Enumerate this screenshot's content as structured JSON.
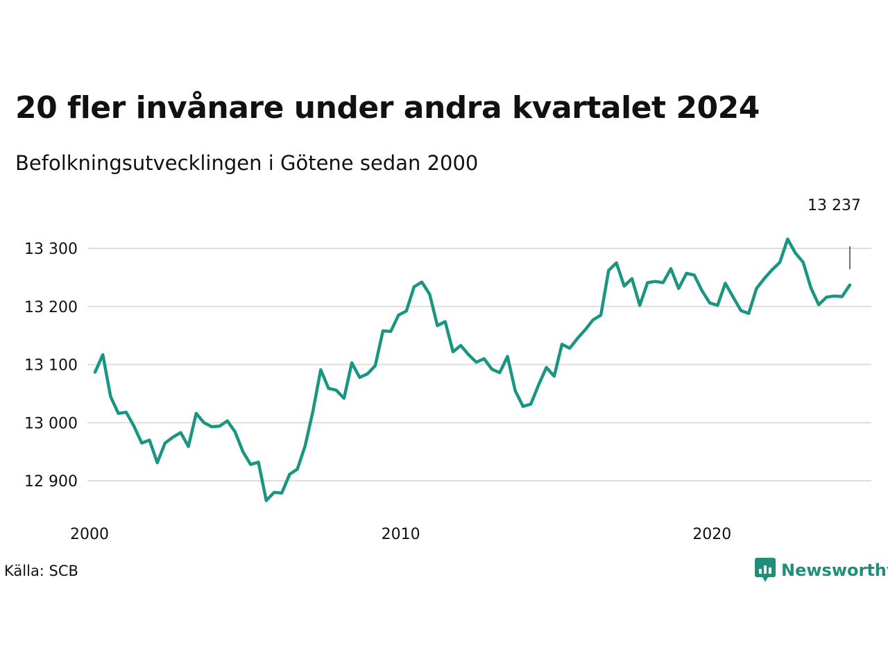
{
  "title": "20 fler invånare under andra kvartalet 2024",
  "subtitle": "Befolkningsutvecklingen i Götene sedan 2000",
  "source": "Källa: SCB",
  "brand": "Newsworthy",
  "colors": {
    "line": "#1a9582",
    "grid": "#dddddd",
    "brand": "#1f8f7c"
  },
  "chart_data": {
    "type": "line",
    "title": "20 fler invånare under andra kvartalet 2024",
    "subtitle": "Befolkningsutvecklingen i Götene sedan 2000",
    "xlabel": "",
    "ylabel": "",
    "ylim": [
      12840,
      13320
    ],
    "y_ticks": [
      12900,
      13000,
      13100,
      13200,
      13300
    ],
    "y_tick_labels": [
      "12 900",
      "13 000",
      "13 100",
      "13 200",
      "13 300"
    ],
    "x_ticks": [
      2000,
      2010,
      2020
    ],
    "x_tick_labels": [
      "2000",
      "2010",
      "2020"
    ],
    "grid": true,
    "last_value_label": "13 237",
    "x": [
      "2000-Q1",
      "2000-Q2",
      "2000-Q3",
      "2000-Q4",
      "2001-Q1",
      "2001-Q2",
      "2001-Q3",
      "2001-Q4",
      "2002-Q1",
      "2002-Q2",
      "2002-Q3",
      "2002-Q4",
      "2003-Q1",
      "2003-Q2",
      "2003-Q3",
      "2003-Q4",
      "2004-Q1",
      "2004-Q2",
      "2004-Q3",
      "2004-Q4",
      "2005-Q1",
      "2005-Q2",
      "2005-Q3",
      "2005-Q4",
      "2006-Q1",
      "2006-Q2",
      "2006-Q3",
      "2006-Q4",
      "2007-Q1",
      "2007-Q2",
      "2007-Q3",
      "2007-Q4",
      "2008-Q1",
      "2008-Q2",
      "2008-Q3",
      "2008-Q4",
      "2009-Q1",
      "2009-Q2",
      "2009-Q3",
      "2009-Q4",
      "2010-Q1",
      "2010-Q2",
      "2010-Q3",
      "2010-Q4",
      "2011-Q1",
      "2011-Q2",
      "2011-Q3",
      "2011-Q4",
      "2012-Q1",
      "2012-Q2",
      "2012-Q3",
      "2012-Q4",
      "2013-Q1",
      "2013-Q2",
      "2013-Q3",
      "2013-Q4",
      "2014-Q1",
      "2014-Q2",
      "2014-Q3",
      "2014-Q4",
      "2015-Q1",
      "2015-Q2",
      "2015-Q3",
      "2015-Q4",
      "2016-Q1",
      "2016-Q2",
      "2016-Q3",
      "2016-Q4",
      "2017-Q1",
      "2017-Q2",
      "2017-Q3",
      "2017-Q4",
      "2018-Q1",
      "2018-Q2",
      "2018-Q3",
      "2018-Q4",
      "2019-Q1",
      "2019-Q2",
      "2019-Q3",
      "2019-Q4",
      "2020-Q1",
      "2020-Q2",
      "2020-Q3",
      "2020-Q4",
      "2021-Q1",
      "2021-Q2",
      "2021-Q3",
      "2021-Q4",
      "2022-Q1",
      "2022-Q2",
      "2022-Q3",
      "2022-Q4",
      "2023-Q1",
      "2023-Q2",
      "2023-Q3",
      "2023-Q4",
      "2024-Q1",
      "2024-Q2"
    ],
    "series": [
      {
        "values": [
          13087,
          13117,
          13045,
          13016,
          13018,
          12994,
          12965,
          12970,
          12931,
          12965,
          12975,
          12983,
          12959,
          13016,
          13000,
          12993,
          12994,
          13003,
          12984,
          12950,
          12928,
          12932,
          12866,
          12880,
          12879,
          12911,
          12920,
          12960,
          13020,
          13091,
          13059,
          13056,
          13042,
          13103,
          13078,
          13084,
          13098,
          13158,
          13157,
          13185,
          13192,
          13234,
          13242,
          13221,
          13167,
          13174,
          13122,
          13133,
          13117,
          13104,
          13110,
          13092,
          13086,
          13114,
          13055,
          13028,
          13032,
          13065,
          13095,
          13080,
          13135,
          13128,
          13145,
          13160,
          13177,
          13185,
          13262,
          13275,
          13235,
          13248,
          13202,
          13241,
          13243,
          13241,
          13265,
          13231,
          13257,
          13254,
          13227,
          13206,
          13202,
          13240,
          13216,
          13193,
          13188,
          13231,
          13248,
          13263,
          13276,
          13316,
          13292,
          13276,
          13232,
          13203,
          13216,
          13218,
          13217,
          13237
        ]
      }
    ]
  }
}
